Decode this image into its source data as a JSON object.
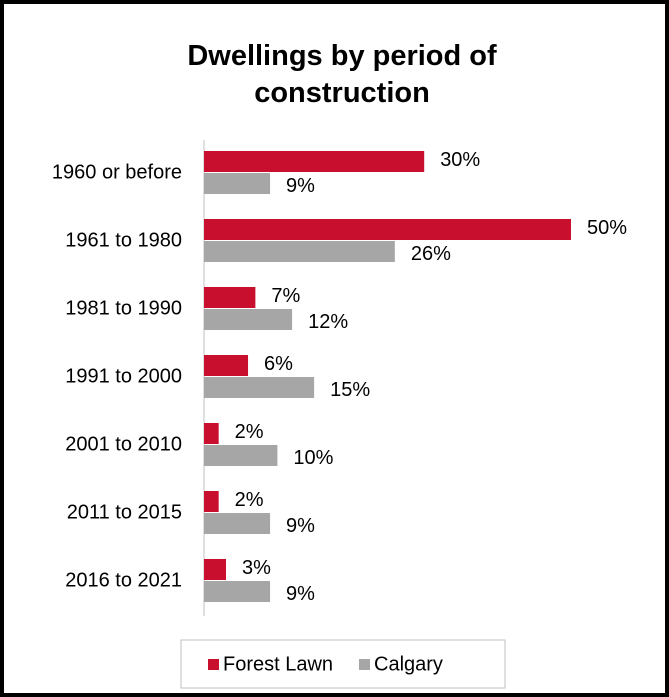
{
  "chart_data": {
    "type": "bar",
    "orientation": "horizontal",
    "title": "Dwellings by period of construction",
    "categories": [
      "1960 or before",
      "1961 to 1980",
      "1981 to 1990",
      "1991 to 2000",
      "2001 to 2010",
      "2011 to 2015",
      "2016 to 2021"
    ],
    "series": [
      {
        "name": "Forest Lawn",
        "color": "#c8102e",
        "values": [
          30,
          50,
          7,
          6,
          2,
          2,
          3
        ],
        "value_labels": [
          "30%",
          "50%",
          "7%",
          "6%",
          "2%",
          "2%",
          "3%"
        ]
      },
      {
        "name": "Calgary",
        "color": "#a6a6a6",
        "values": [
          9,
          26,
          12,
          15,
          10,
          9,
          9
        ],
        "value_labels": [
          "9%",
          "26%",
          "12%",
          "15%",
          "10%",
          "9%",
          "9%"
        ]
      }
    ],
    "legend": "bottom"
  }
}
